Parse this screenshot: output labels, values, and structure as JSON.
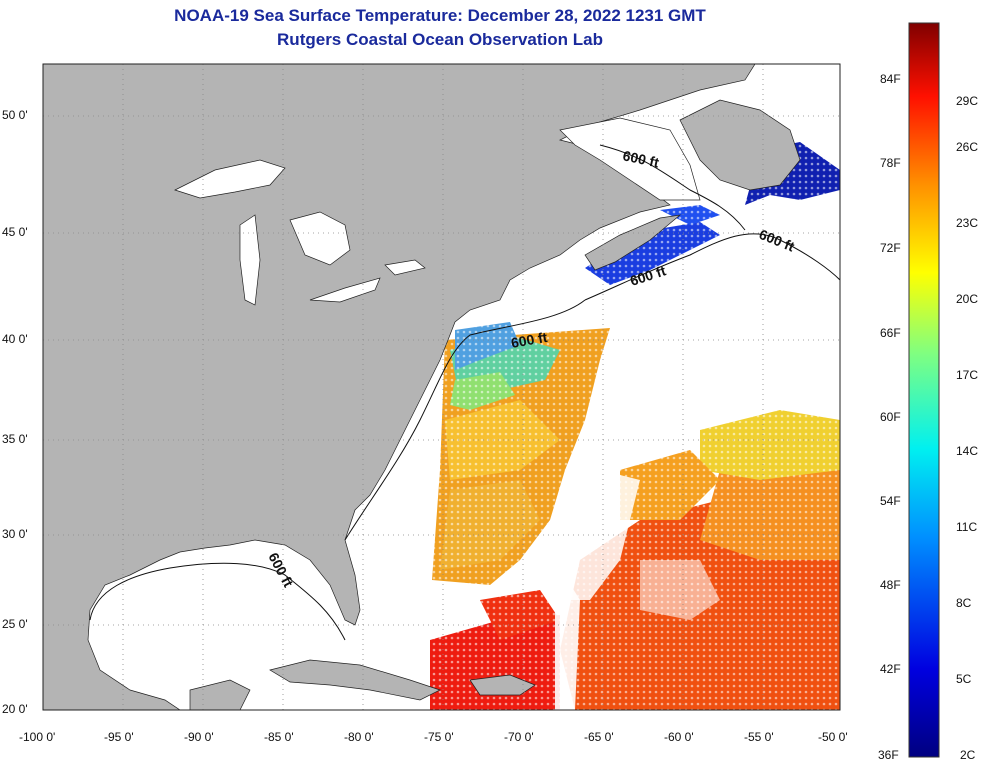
{
  "header": {
    "title": "NOAA-19 Sea Surface Temperature:  December 28, 2022 1231 GMT",
    "subtitle": "Rutgers Coastal Ocean Observation Lab"
  },
  "axes": {
    "lon_labels": [
      "-100 0'",
      "-95 0'",
      "-90 0'",
      "-85 0'",
      "-80 0'",
      "-75 0'",
      "-70 0'",
      "-65 0'",
      "-60 0'",
      "-55 0'",
      "-50 0'"
    ],
    "lat_labels": [
      "50 0'",
      "45 0'",
      "40 0'",
      "35 0'",
      "30 0'",
      "25 0'",
      "20 0'"
    ]
  },
  "contour_labels": [
    "600 ft",
    "600 ft",
    "600 ft",
    "600 ft",
    "600 ft"
  ],
  "colorbar": {
    "fahrenheit": [
      "84F",
      "78F",
      "72F",
      "66F",
      "60F",
      "54F",
      "48F",
      "42F",
      "36F"
    ],
    "celsius": [
      "29C",
      "26C",
      "23C",
      "20C",
      "17C",
      "14C",
      "11C",
      "8C",
      "5C",
      "2C"
    ]
  },
  "colors": {
    "land": "#b4b4b4",
    "ocean_nodata": "#ffffff",
    "title": "#1a2a9c"
  }
}
